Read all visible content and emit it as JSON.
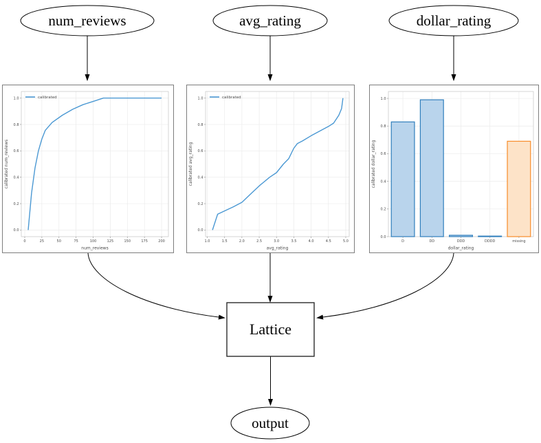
{
  "diagram": {
    "nodes": {
      "num_reviews": {
        "label": "num_reviews"
      },
      "avg_rating": {
        "label": "avg_rating"
      },
      "dollar_rating": {
        "label": "dollar_rating"
      },
      "lattice": {
        "label": "Lattice"
      },
      "output": {
        "label": "output"
      }
    }
  },
  "colors": {
    "line_blue": "#4a98d3",
    "bar_blue_fill": "#b9d4ec",
    "bar_blue_edge": "#2e7ebc",
    "bar_orange_fill": "#fde3c8",
    "bar_orange_edge": "#f78b28",
    "grid": "#ebebeb",
    "spine": "#cccccc",
    "tick": "#999999",
    "text": "#4a4a4a"
  },
  "chart_data": [
    {
      "type": "line",
      "title": "",
      "xlabel": "num_reviews",
      "ylabel": "calibrated num_reviews",
      "legend": [
        "calibrated"
      ],
      "legend_pos": "upper left",
      "grid": true,
      "xlim": [
        -5,
        210
      ],
      "ylim": [
        -0.05,
        1.05
      ],
      "xticks": [
        0,
        25,
        50,
        75,
        100,
        125,
        150,
        175,
        200
      ],
      "xtick_labels": [
        "0",
        "25",
        "50",
        "75",
        "100",
        "125",
        "150",
        "175",
        "200"
      ],
      "yticks": [
        0.0,
        0.2,
        0.4,
        0.6,
        0.8,
        1.0
      ],
      "ytick_labels": [
        "0.0",
        "0.2",
        "0.4",
        "0.6",
        "0.8",
        "1.0"
      ],
      "x": [
        5,
        10,
        15,
        20,
        25,
        30,
        40,
        55,
        70,
        85,
        100,
        115,
        200
      ],
      "y": [
        0.0,
        0.28,
        0.47,
        0.6,
        0.69,
        0.755,
        0.815,
        0.87,
        0.915,
        0.95,
        0.975,
        1.0,
        1.0
      ]
    },
    {
      "type": "line",
      "title": "",
      "xlabel": "avg_rating",
      "ylabel": "calibrated avg_rating",
      "legend": [
        "calibrated"
      ],
      "legend_pos": "upper left",
      "grid": true,
      "xlim": [
        0.95,
        5.1
      ],
      "ylim": [
        -0.05,
        1.05
      ],
      "xticks": [
        1.0,
        1.5,
        2.0,
        2.5,
        3.0,
        3.5,
        4.0,
        4.5,
        5.0
      ],
      "xtick_labels": [
        "1.0",
        "1.5",
        "2.0",
        "2.5",
        "3.0",
        "3.5",
        "4.0",
        "4.5",
        "5.0"
      ],
      "yticks": [
        0.0,
        0.2,
        0.4,
        0.6,
        0.8,
        1.0
      ],
      "ytick_labels": [
        "0.0",
        "0.2",
        "0.4",
        "0.6",
        "0.8",
        "1.0"
      ],
      "x": [
        1.15,
        1.3,
        1.5,
        1.75,
        2.0,
        2.2,
        2.5,
        2.8,
        3.0,
        3.2,
        3.35,
        3.5,
        3.6,
        3.75,
        4.0,
        4.25,
        4.5,
        4.65,
        4.8,
        4.88,
        4.92
      ],
      "y": [
        0.0,
        0.12,
        0.145,
        0.175,
        0.21,
        0.26,
        0.335,
        0.4,
        0.435,
        0.5,
        0.54,
        0.62,
        0.655,
        0.675,
        0.715,
        0.75,
        0.785,
        0.81,
        0.87,
        0.92,
        1.0
      ]
    },
    {
      "type": "bar",
      "title": "",
      "xlabel": "dollar_rating",
      "ylabel": "calibrated dollar_rating",
      "grid": true,
      "ylim": [
        0,
        1.05
      ],
      "categories": [
        "D",
        "DD",
        "DDD",
        "DDDD",
        "missing"
      ],
      "values": [
        0.83,
        0.99,
        0.01,
        0.004,
        0.69
      ],
      "bar_colors": [
        "blue",
        "blue",
        "blue",
        "blue",
        "orange"
      ],
      "yticks": [
        0.0,
        0.2,
        0.4,
        0.6,
        0.8,
        1.0
      ],
      "ytick_labels": [
        "0.0",
        "0.2",
        "0.4",
        "0.6",
        "0.8",
        "1.0"
      ]
    }
  ]
}
